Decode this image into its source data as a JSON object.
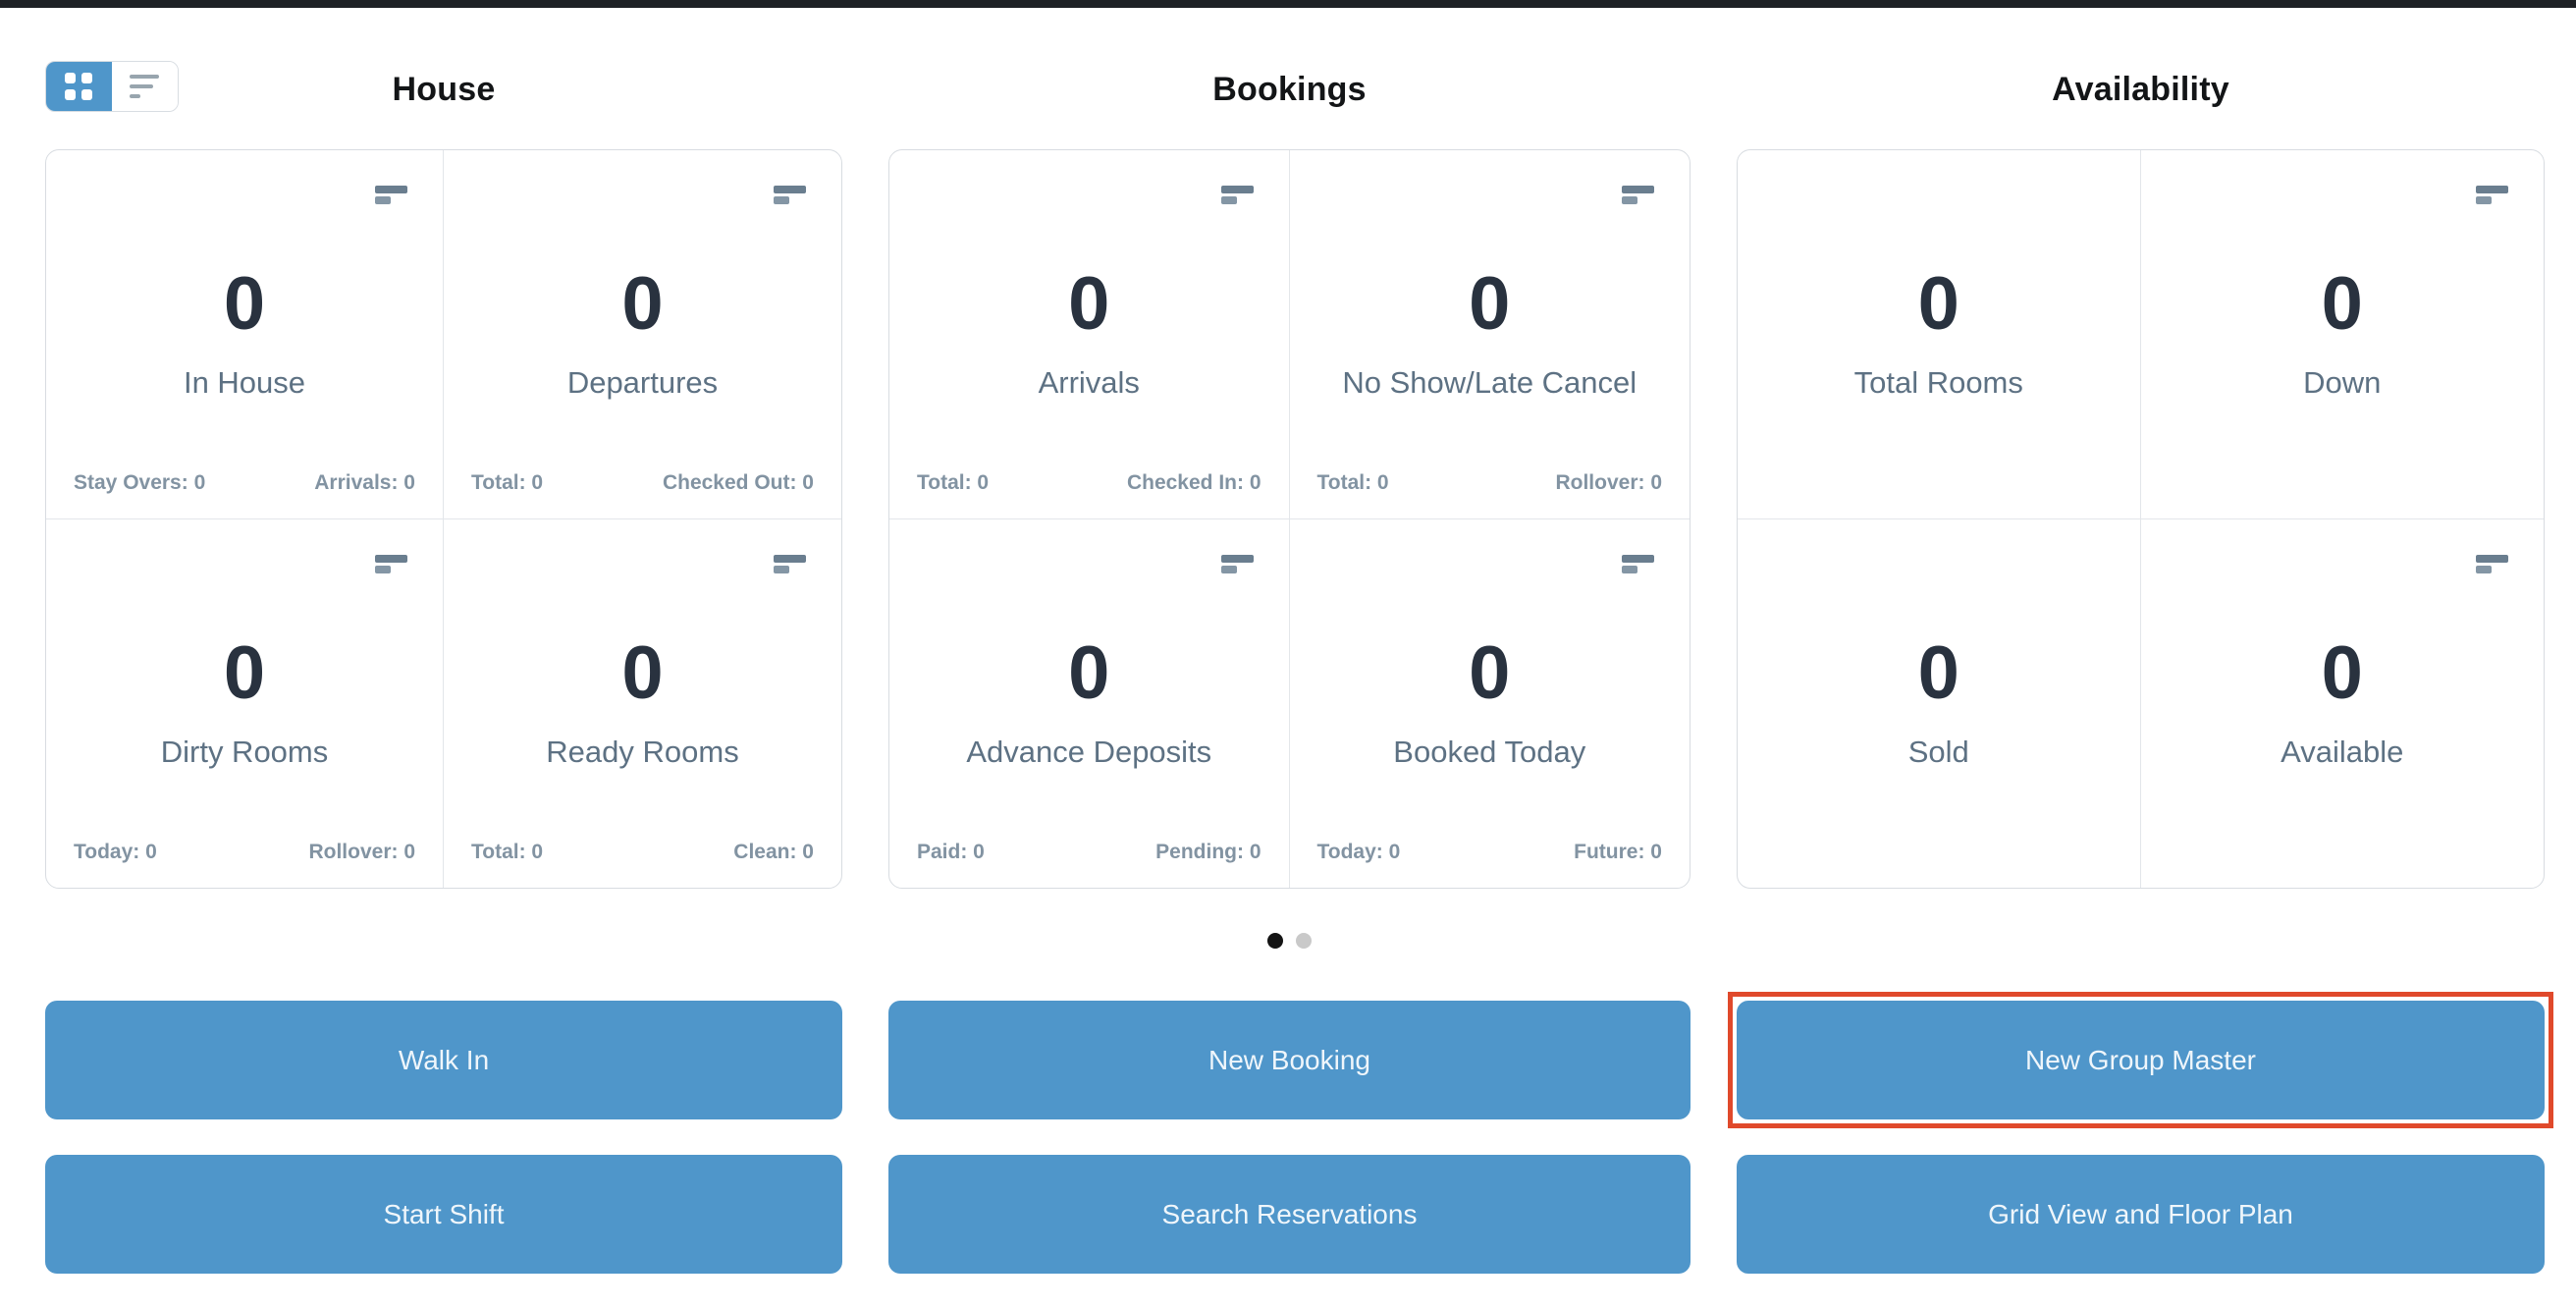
{
  "view_toggle": {
    "grid_button": {
      "icon": "grid-view-icon",
      "active": true
    },
    "list_button": {
      "icon": "list-view-icon",
      "active": false
    }
  },
  "columns": [
    {
      "header": "House",
      "cards": [
        {
          "value": "0",
          "label": "In House",
          "footer_left": "Stay Overs: 0",
          "footer_right": "Arrivals: 0",
          "menu_icon": true
        },
        {
          "value": "0",
          "label": "Departures",
          "footer_left": "Total: 0",
          "footer_right": "Checked Out: 0",
          "menu_icon": true
        },
        {
          "value": "0",
          "label": "Dirty Rooms",
          "footer_left": "Today: 0",
          "footer_right": "Rollover: 0",
          "menu_icon": true
        },
        {
          "value": "0",
          "label": "Ready Rooms",
          "footer_left": "Total: 0",
          "footer_right": "Clean: 0",
          "menu_icon": true
        }
      ],
      "buttons": [
        "Walk In",
        "Start Shift"
      ]
    },
    {
      "header": "Bookings",
      "cards": [
        {
          "value": "0",
          "label": "Arrivals",
          "footer_left": "Total: 0",
          "footer_right": "Checked In: 0",
          "menu_icon": true
        },
        {
          "value": "0",
          "label": "No Show/Late Cancel",
          "footer_left": "Total: 0",
          "footer_right": "Rollover: 0",
          "menu_icon": true
        },
        {
          "value": "0",
          "label": "Advance Deposits",
          "footer_left": "Paid: 0",
          "footer_right": "Pending: 0",
          "menu_icon": true
        },
        {
          "value": "0",
          "label": "Booked Today",
          "footer_left": "Today: 0",
          "footer_right": "Future: 0",
          "menu_icon": true
        }
      ],
      "buttons": [
        "New Booking",
        "Search Reservations"
      ]
    },
    {
      "header": "Availability",
      "cards": [
        {
          "value": "0",
          "label": "Total Rooms",
          "menu_icon": false
        },
        {
          "value": "0",
          "label": "Down",
          "menu_icon": true
        },
        {
          "value": "0",
          "label": "Sold",
          "menu_icon": false
        },
        {
          "value": "0",
          "label": "Available",
          "menu_icon": true
        }
      ],
      "buttons": [
        "New Group Master",
        "Grid View and Floor Plan"
      ]
    }
  ],
  "pagination": {
    "dots": [
      {
        "state": "active"
      },
      {
        "state": "inactive"
      }
    ]
  },
  "highlight": {
    "highlighted_button": "New Group Master",
    "color": "#e0492b"
  },
  "colors": {
    "accent_blue": "#4f96ca",
    "topbar": "#1e2125",
    "stat_number": "#29323f",
    "stat_label": "#5d7183",
    "stat_footer": "#8293a2",
    "card_border": "#d8dce1",
    "dot_active": "#141414",
    "dot_inactive": "#c9c9c9",
    "highlight_red": "#e0492b"
  },
  "icons": {
    "card_menu": "two-horizontal-bars",
    "grid_view": "four-squares",
    "list_view": "three-lines"
  }
}
